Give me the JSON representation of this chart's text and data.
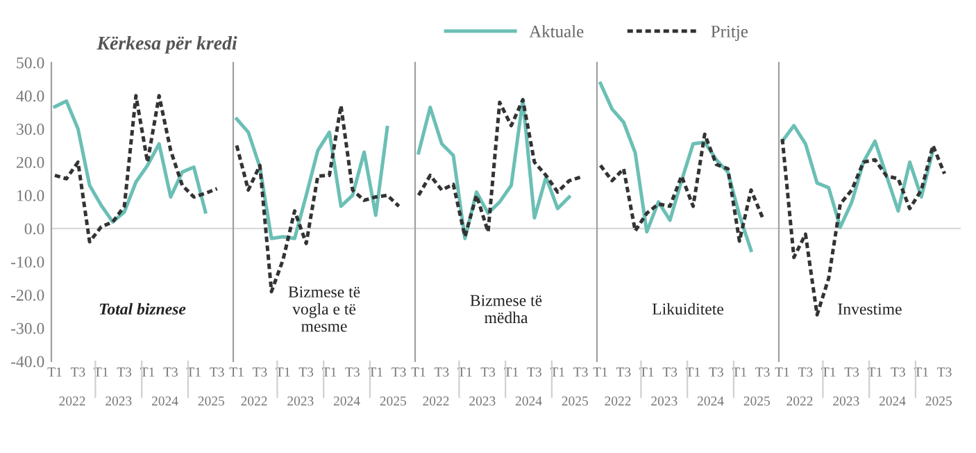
{
  "chart_data": [
    {
      "type": "line",
      "title": "Kërkesa për kredi",
      "categories": [
        "T1",
        null,
        "T3",
        null,
        "T1",
        null,
        "T3",
        null,
        "T1",
        null,
        "T3",
        null,
        "T1",
        null,
        "T3",
        null
      ],
      "ylim": [
        -40,
        50
      ],
      "yticks": [
        {
          "value": -40,
          "label": "-40.0"
        },
        {
          "value": -30,
          "label": "-30.0"
        },
        {
          "value": -20,
          "label": "-20.0"
        },
        {
          "value": -10,
          "label": "-10.0"
        },
        {
          "value": 0,
          "label": "0.0"
        },
        {
          "value": 10,
          "label": "10.0"
        },
        {
          "value": 20,
          "label": "20.0"
        },
        {
          "value": 30,
          "label": "30.0"
        },
        {
          "value": 40,
          "label": "40.0"
        },
        {
          "value": 50,
          "label": "50.0"
        }
      ],
      "annotations": [
        "Total biznese",
        "2022",
        "2023",
        "2024",
        "2025"
      ],
      "ref_lines": [
        {
          "axis": "y",
          "value": 0,
          "color": "#d9d9d9"
        }
      ],
      "series": [
        {
          "color": "#6bbfb5",
          "line_style": "solid",
          "values": [
            36.7,
            38.4,
            30,
            13,
            7,
            2,
            5,
            14,
            19,
            25.5,
            9.5,
            17,
            18.5,
            5,
            null,
            null
          ]
        },
        {
          "color": "#333333",
          "line_style": "dashed",
          "values": [
            16,
            15,
            20,
            -4,
            0.5,
            2,
            6.7,
            40,
            20,
            40,
            23.5,
            13,
            9.5,
            10.6,
            12,
            null
          ]
        }
      ]
    },
    {
      "type": "line",
      "categories": [
        "T1",
        null,
        "T3",
        null,
        "T1",
        null,
        "T3",
        null,
        "T1",
        null,
        "T3",
        null,
        "T1",
        null,
        "T3",
        null
      ],
      "ylim": [
        -40,
        50
      ],
      "tick_labels": "x",
      "annotations": [
        "Bizmese të\nvogla e të\nmesme",
        "2022",
        "2023",
        "2024",
        "2025"
      ],
      "ref_lines": [
        {
          "axis": "y",
          "value": 0,
          "color": "#d9d9d9"
        }
      ],
      "series": [
        {
          "color": "#6bbfb5",
          "line_style": "solid",
          "values": [
            33,
            29,
            18.5,
            -3,
            -2.5,
            -3,
            10,
            23.5,
            29,
            6.7,
            10,
            23,
            4,
            30.4,
            null,
            null
          ]
        },
        {
          "color": "#333333",
          "line_style": "dashed",
          "values": [
            25,
            11.6,
            19,
            -19,
            -9.4,
            5.3,
            -4.5,
            15.8,
            16,
            37,
            11.6,
            8.5,
            9.5,
            10,
            6.7,
            null
          ]
        }
      ]
    },
    {
      "type": "line",
      "categories": [
        "T1",
        null,
        "T3",
        null,
        "T1",
        null,
        "T3",
        null,
        "T1",
        null,
        "T3",
        null,
        "T1",
        null,
        "T3",
        null
      ],
      "ylim": [
        -40,
        50
      ],
      "tick_labels": "x",
      "legend": "top",
      "annotations": [
        "Bizmese të\nmëdha",
        "2022",
        "2023",
        "2024",
        "2025"
      ],
      "ref_lines": [
        {
          "axis": "y",
          "value": 0,
          "color": "#d9d9d9"
        }
      ],
      "series": [
        {
          "name": "Aktuale",
          "color": "#6bbfb5",
          "line_style": "solid",
          "values": [
            22.8,
            36.5,
            25.5,
            22,
            -3,
            11,
            4.6,
            8,
            13,
            38.8,
            3.2,
            15.5,
            6,
            9.5,
            null,
            null
          ]
        },
        {
          "name": "Pritje",
          "color": "#333333",
          "line_style": "dashed",
          "values": [
            10,
            16,
            11.6,
            13.3,
            -2.4,
            10,
            -1,
            38,
            31,
            38.8,
            20,
            16,
            11,
            14.4,
            15.5,
            null
          ]
        }
      ]
    },
    {
      "type": "line",
      "categories": [
        "T1",
        null,
        "T3",
        null,
        "T1",
        null,
        "T3",
        null,
        "T1",
        null,
        "T3",
        null,
        "T1",
        null,
        "T3",
        null
      ],
      "ylim": [
        -40,
        50
      ],
      "tick_labels": "x",
      "annotations": [
        "Likuiditete",
        "2022",
        "2023",
        "2024",
        "2025"
      ],
      "ref_lines": [
        {
          "axis": "y",
          "value": 0,
          "color": "#d9d9d9"
        }
      ],
      "series": [
        {
          "color": "#6bbfb5",
          "line_style": "solid",
          "values": [
            43.7,
            36,
            32,
            22.8,
            -1,
            8,
            2.5,
            14.4,
            25.5,
            26,
            20.7,
            17,
            4,
            -6.6,
            null,
            null
          ]
        },
        {
          "color": "#333333",
          "line_style": "dashed",
          "values": [
            19,
            14.4,
            18,
            -0.7,
            4.6,
            7.4,
            6.7,
            15.8,
            6.7,
            28.4,
            19.3,
            18,
            -3.8,
            11.6,
            3.2,
            null
          ]
        }
      ]
    },
    {
      "type": "line",
      "categories": [
        "T1",
        null,
        "T3",
        null,
        "T1",
        null,
        "T3",
        null,
        "T1",
        null,
        "T3",
        null,
        "T1",
        null,
        "T3",
        null
      ],
      "ylim": [
        -40,
        50
      ],
      "tick_labels": "x",
      "annotations": [
        "Investime",
        "2022",
        "2023",
        "2024",
        "2025"
      ],
      "ref_lines": [
        {
          "axis": "y",
          "value": 0,
          "color": "#d9d9d9"
        }
      ],
      "series": [
        {
          "color": "#6bbfb5",
          "line_style": "solid",
          "values": [
            26.3,
            31,
            25.5,
            13.7,
            12.3,
            0.4,
            8,
            20,
            26.3,
            15.8,
            5.3,
            20,
            9.5,
            23.5,
            null,
            null
          ]
        },
        {
          "color": "#333333",
          "line_style": "dashed",
          "values": [
            27,
            -8.7,
            -1.7,
            -26,
            -15,
            7.4,
            11.6,
            20,
            20.7,
            15.8,
            15,
            6,
            11.6,
            25,
            16.5,
            null
          ]
        }
      ]
    }
  ]
}
